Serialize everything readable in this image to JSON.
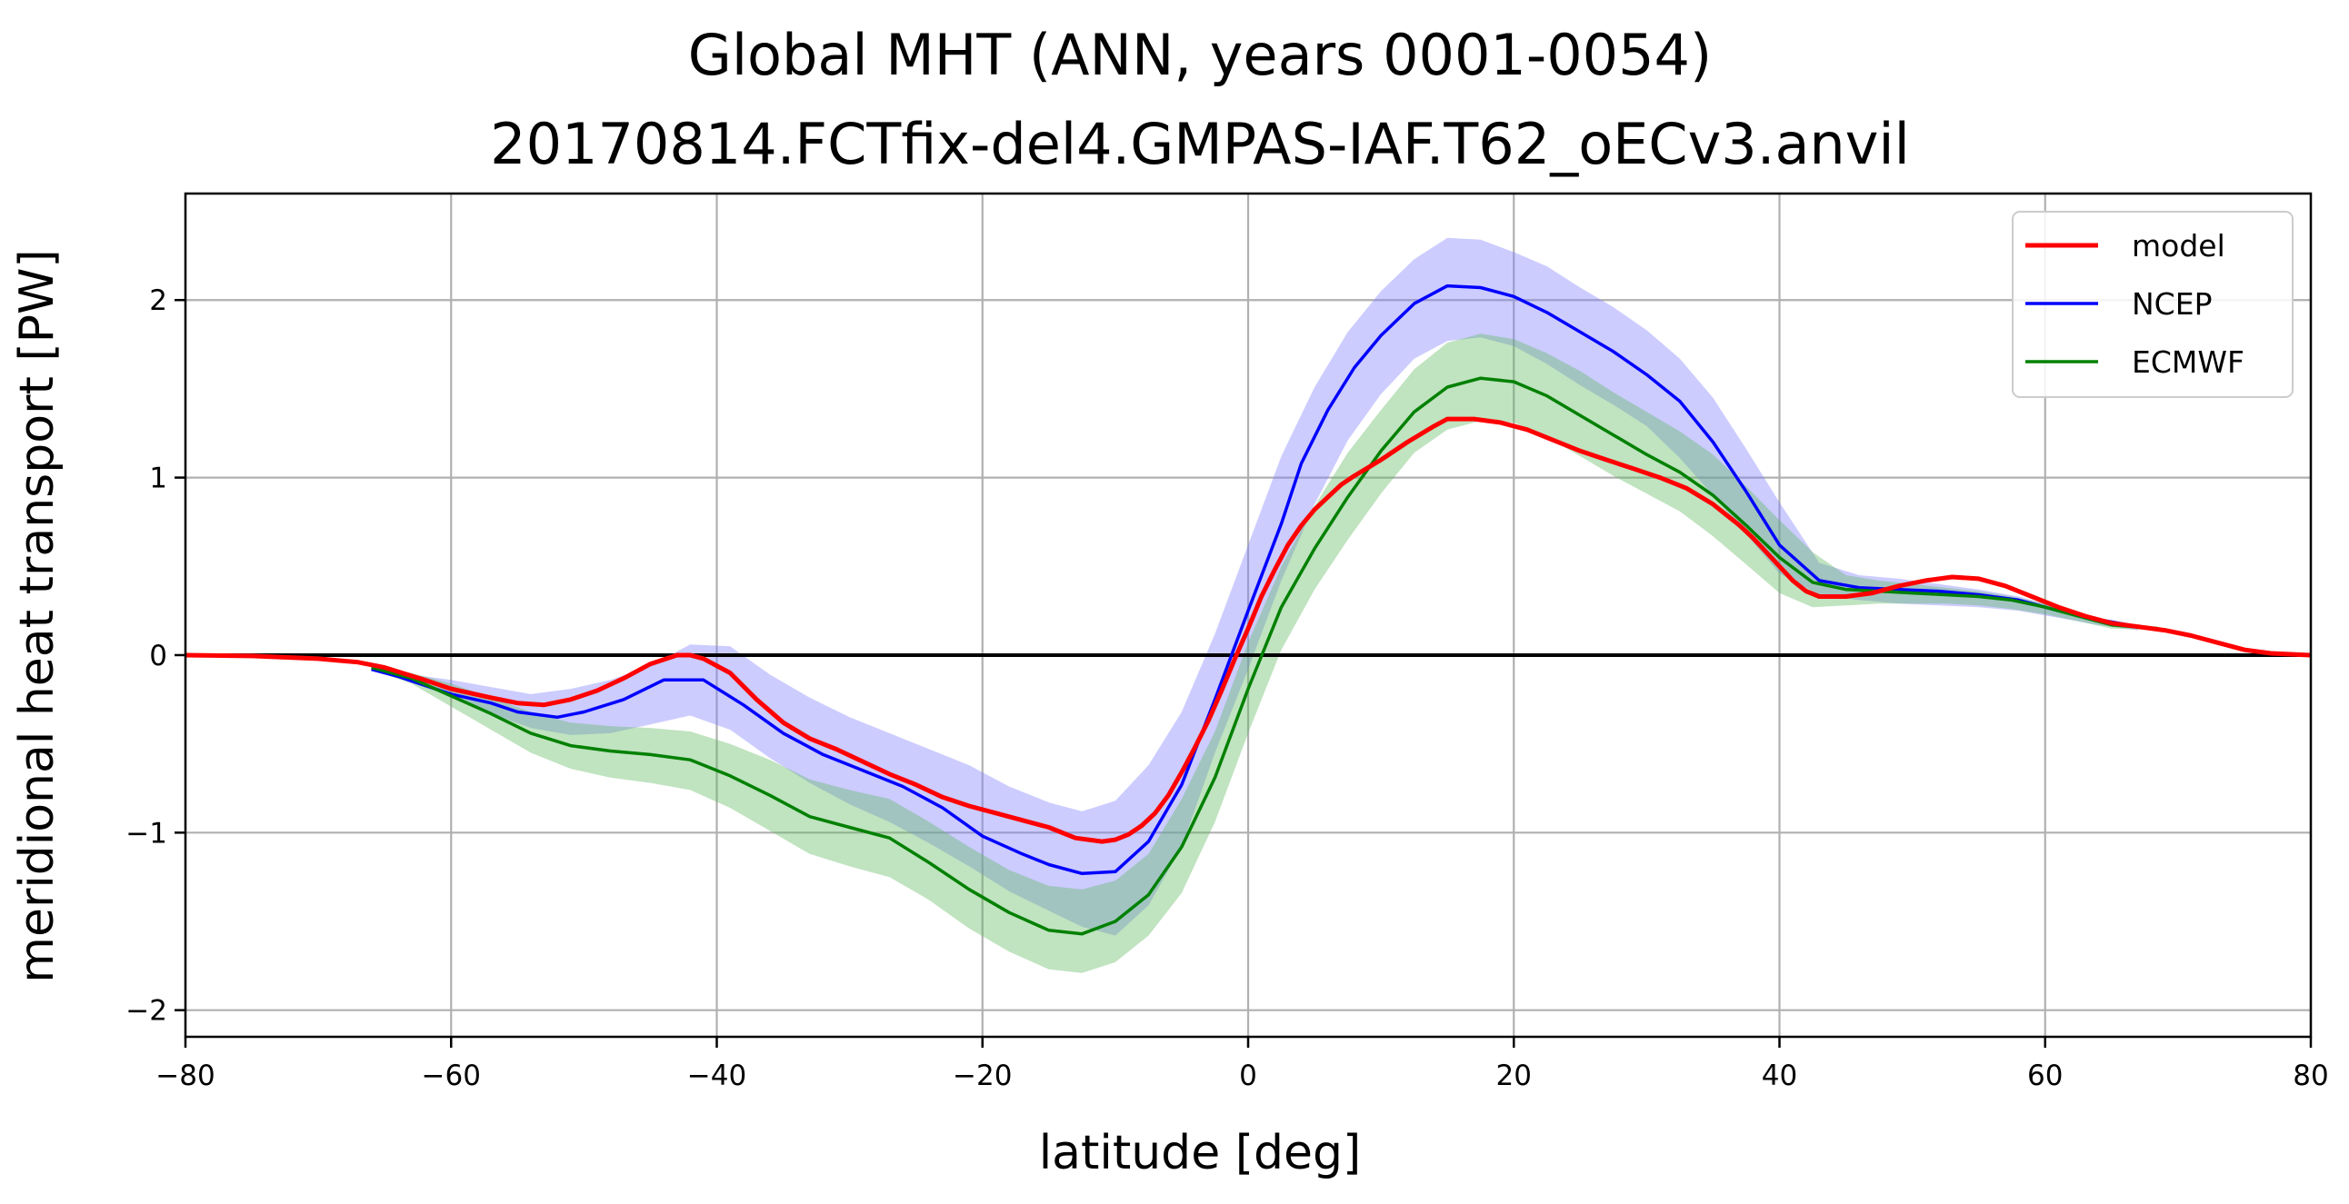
{
  "chart_data": {
    "type": "line",
    "title": "Global MHT (ANN, years 0001-0054)",
    "subtitle": "20170814.FCTfix-del4.GMPAS-IAF.T62_oECv3.anvil",
    "xlabel": "latitude [deg]",
    "ylabel": "meridional heat transport [PW]",
    "xlim": [
      -80,
      80
    ],
    "ylim": [
      -2.15,
      2.6
    ],
    "xticks": [
      -80,
      -60,
      -40,
      -20,
      0,
      20,
      40,
      60,
      80
    ],
    "xtick_labels": [
      "−80",
      "−60",
      "−40",
      "−20",
      "0",
      "20",
      "40",
      "60",
      "80"
    ],
    "yticks": [
      -2,
      -1,
      0,
      1,
      2
    ],
    "ytick_labels": [
      "−2",
      "−1",
      "0",
      "1",
      "2"
    ],
    "grid": true,
    "legend_position": "top-right",
    "zero_line": true,
    "colors": {
      "model": "#ff0000",
      "NCEP": "#0000ff",
      "ECMWF": "#008000",
      "NCEP_band": "#8080ff",
      "ECMWF_band": "#62b862"
    },
    "series": [
      {
        "name": "model",
        "color": "#ff0000",
        "x": [
          -80,
          -75,
          -70,
          -67,
          -65,
          -62,
          -60,
          -57,
          -55,
          -53,
          -51,
          -49,
          -47,
          -45,
          -43,
          -42,
          -41,
          -39,
          -37,
          -35,
          -33,
          -31,
          -29,
          -27,
          -25,
          -23,
          -21,
          -19,
          -17,
          -15,
          -13,
          -11,
          -10,
          -9,
          -8,
          -7,
          -6,
          -5,
          -4,
          -3,
          -2,
          -1,
          0,
          1,
          2,
          3,
          4,
          5,
          6,
          7,
          8,
          10,
          12,
          14,
          15,
          17,
          19,
          21,
          23,
          25,
          27,
          29,
          31,
          33,
          35,
          37,
          38,
          39,
          40,
          41,
          42,
          43,
          45,
          47,
          49,
          51,
          53,
          55,
          57,
          59,
          61,
          63,
          65,
          67,
          69,
          71,
          73,
          75,
          77,
          80
        ],
        "values": [
          0.0,
          -0.005,
          -0.02,
          -0.04,
          -0.07,
          -0.14,
          -0.19,
          -0.24,
          -0.27,
          -0.28,
          -0.25,
          -0.2,
          -0.13,
          -0.05,
          0.0,
          0.0,
          -0.02,
          -0.1,
          -0.25,
          -0.38,
          -0.47,
          -0.53,
          -0.6,
          -0.67,
          -0.73,
          -0.8,
          -0.85,
          -0.89,
          -0.93,
          -0.97,
          -1.03,
          -1.05,
          -1.04,
          -1.01,
          -0.96,
          -0.89,
          -0.79,
          -0.66,
          -0.52,
          -0.37,
          -0.2,
          -0.02,
          0.15,
          0.33,
          0.48,
          0.62,
          0.73,
          0.82,
          0.89,
          0.96,
          1.01,
          1.1,
          1.2,
          1.29,
          1.33,
          1.33,
          1.31,
          1.27,
          1.21,
          1.15,
          1.1,
          1.05,
          1.0,
          0.94,
          0.85,
          0.73,
          0.66,
          0.58,
          0.5,
          0.42,
          0.36,
          0.33,
          0.33,
          0.35,
          0.39,
          0.42,
          0.44,
          0.43,
          0.39,
          0.33,
          0.27,
          0.22,
          0.18,
          0.16,
          0.14,
          0.11,
          0.07,
          0.03,
          0.01,
          0.0
        ]
      },
      {
        "name": "NCEP",
        "color": "#0000ff",
        "x": [
          -66,
          -64,
          -62,
          -60,
          -57,
          -55,
          -52,
          -50,
          -47,
          -44,
          -41,
          -38,
          -35,
          -32,
          -29,
          -26,
          -23,
          -20,
          -17,
          -15,
          -12.5,
          -10,
          -7.5,
          -5,
          -2.5,
          0,
          2.5,
          4,
          6,
          8,
          10,
          12.5,
          15,
          17.5,
          20,
          22.5,
          25,
          27.5,
          30,
          32.5,
          35,
          37.5,
          40,
          43,
          46,
          49,
          52,
          55,
          58,
          61,
          64,
          67
        ],
        "values": [
          -0.08,
          -0.12,
          -0.17,
          -0.22,
          -0.27,
          -0.32,
          -0.35,
          -0.32,
          -0.25,
          -0.14,
          -0.14,
          -0.28,
          -0.44,
          -0.56,
          -0.65,
          -0.74,
          -0.86,
          -1.02,
          -1.12,
          -1.18,
          -1.23,
          -1.22,
          -1.05,
          -0.73,
          -0.25,
          0.25,
          0.74,
          1.08,
          1.38,
          1.62,
          1.8,
          1.98,
          2.08,
          2.07,
          2.02,
          1.93,
          1.82,
          1.71,
          1.58,
          1.43,
          1.2,
          0.92,
          0.62,
          0.42,
          0.38,
          0.37,
          0.36,
          0.34,
          0.31,
          0.25,
          0.2,
          0.16
        ]
      },
      {
        "name": "ECMWF",
        "color": "#008000",
        "x": [
          -66,
          -63,
          -60,
          -57,
          -54,
          -51,
          -48,
          -45,
          -42,
          -39,
          -36,
          -33,
          -30,
          -27,
          -24,
          -21,
          -18,
          -15,
          -12.5,
          -10,
          -7.5,
          -5,
          -2.5,
          0,
          2.5,
          5,
          7.5,
          10,
          12.5,
          15,
          17.5,
          20,
          22.5,
          25,
          27.5,
          30,
          32.5,
          35,
          37.5,
          40,
          42.5,
          45,
          47.5,
          50,
          52.5,
          55,
          57.5,
          60,
          62.5,
          65,
          68.5
        ],
        "values": [
          -0.07,
          -0.13,
          -0.23,
          -0.33,
          -0.44,
          -0.51,
          -0.54,
          -0.56,
          -0.59,
          -0.68,
          -0.79,
          -0.91,
          -0.97,
          -1.03,
          -1.17,
          -1.32,
          -1.45,
          -1.55,
          -1.57,
          -1.5,
          -1.35,
          -1.08,
          -0.69,
          -0.19,
          0.27,
          0.6,
          0.89,
          1.15,
          1.37,
          1.51,
          1.56,
          1.54,
          1.46,
          1.35,
          1.24,
          1.13,
          1.03,
          0.9,
          0.73,
          0.55,
          0.41,
          0.37,
          0.36,
          0.35,
          0.34,
          0.33,
          0.31,
          0.27,
          0.22,
          0.17,
          0.15
        ]
      }
    ],
    "bands": [
      {
        "series": "NCEP",
        "color": "#8080ff",
        "x": [
          -66,
          -63,
          -60,
          -57,
          -54,
          -51,
          -48,
          -45,
          -42,
          -39,
          -36,
          -33,
          -30,
          -27,
          -24,
          -21,
          -18,
          -15,
          -12.5,
          -10,
          -7.5,
          -5,
          -2.5,
          0,
          2.5,
          5,
          7.5,
          10,
          12.5,
          15,
          17.5,
          20,
          22.5,
          25,
          27.5,
          30,
          32.5,
          35,
          37.5,
          40,
          43,
          46,
          49,
          52,
          55,
          58,
          61,
          64,
          67
        ],
        "upper": [
          -0.07,
          -0.11,
          -0.14,
          -0.18,
          -0.22,
          -0.19,
          -0.14,
          -0.06,
          0.06,
          0.05,
          -0.11,
          -0.24,
          -0.35,
          -0.44,
          -0.53,
          -0.62,
          -0.74,
          -0.83,
          -0.88,
          -0.82,
          -0.62,
          -0.32,
          0.12,
          0.62,
          1.12,
          1.51,
          1.82,
          2.05,
          2.23,
          2.35,
          2.34,
          2.27,
          2.19,
          2.07,
          1.96,
          1.83,
          1.67,
          1.45,
          1.16,
          0.86,
          0.52,
          0.45,
          0.43,
          0.4,
          0.37,
          0.33,
          0.27,
          0.21,
          0.17
        ],
        "lower": [
          -0.09,
          -0.14,
          -0.24,
          -0.33,
          -0.41,
          -0.45,
          -0.44,
          -0.39,
          -0.34,
          -0.42,
          -0.58,
          -0.72,
          -0.84,
          -0.94,
          -1.06,
          -1.19,
          -1.33,
          -1.44,
          -1.53,
          -1.58,
          -1.41,
          -1.08,
          -0.55,
          -0.08,
          0.42,
          0.85,
          1.21,
          1.47,
          1.67,
          1.77,
          1.79,
          1.74,
          1.64,
          1.52,
          1.41,
          1.29,
          1.11,
          0.9,
          0.68,
          0.46,
          0.34,
          0.31,
          0.29,
          0.28,
          0.27,
          0.25,
          0.21,
          0.17,
          0.14
        ]
      },
      {
        "series": "ECMWF",
        "color": "#62b862",
        "x": [
          -66,
          -63,
          -60,
          -57,
          -54,
          -51,
          -48,
          -45,
          -42,
          -39,
          -36,
          -33,
          -30,
          -27,
          -24,
          -21,
          -18,
          -15,
          -12.5,
          -10,
          -7.5,
          -5,
          -2.5,
          0,
          2.5,
          5,
          7.5,
          10,
          12.5,
          15,
          17.5,
          20,
          22.5,
          25,
          27.5,
          30,
          32.5,
          35,
          37.5,
          40,
          42.5,
          45,
          47.5,
          50,
          52.5,
          55,
          57.5,
          60,
          62.5,
          65,
          68.5
        ],
        "upper": [
          -0.06,
          -0.1,
          -0.16,
          -0.24,
          -0.32,
          -0.38,
          -0.4,
          -0.41,
          -0.43,
          -0.5,
          -0.59,
          -0.7,
          -0.76,
          -0.81,
          -0.94,
          -1.08,
          -1.21,
          -1.3,
          -1.32,
          -1.27,
          -1.12,
          -0.81,
          -0.43,
          0.07,
          0.5,
          0.84,
          1.14,
          1.38,
          1.61,
          1.76,
          1.81,
          1.78,
          1.7,
          1.6,
          1.48,
          1.37,
          1.26,
          1.13,
          0.95,
          0.76,
          0.58,
          0.45,
          0.42,
          0.4,
          0.38,
          0.36,
          0.33,
          0.29,
          0.24,
          0.19,
          0.16
        ],
        "lower": [
          -0.08,
          -0.16,
          -0.29,
          -0.42,
          -0.55,
          -0.64,
          -0.69,
          -0.72,
          -0.76,
          -0.86,
          -0.99,
          -1.12,
          -1.19,
          -1.25,
          -1.38,
          -1.54,
          -1.67,
          -1.77,
          -1.79,
          -1.73,
          -1.58,
          -1.34,
          -0.94,
          -0.44,
          0.03,
          0.37,
          0.65,
          0.91,
          1.14,
          1.27,
          1.32,
          1.31,
          1.23,
          1.12,
          1.01,
          0.91,
          0.81,
          0.67,
          0.51,
          0.35,
          0.27,
          0.28,
          0.29,
          0.29,
          0.29,
          0.28,
          0.26,
          0.23,
          0.19,
          0.15,
          0.14
        ]
      }
    ]
  }
}
